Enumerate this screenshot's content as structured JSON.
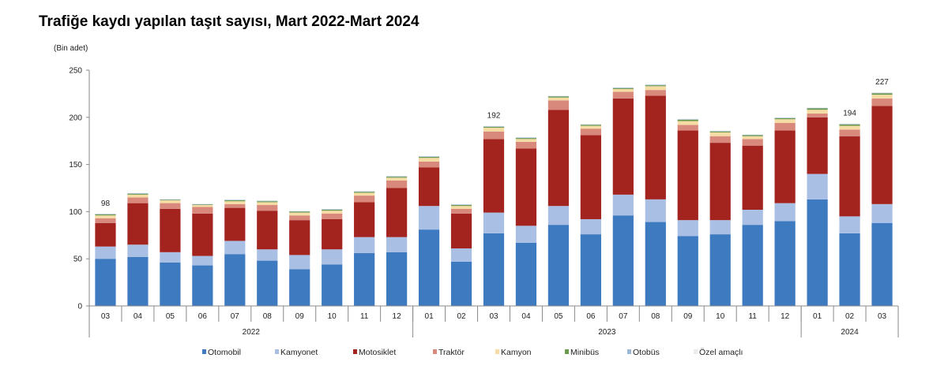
{
  "chart_data": {
    "type": "bar",
    "stacked": true,
    "title": "Trafiğe kaydı yapılan taşıt sayısı, Mart 2022-Mart 2024",
    "ylabel": "(Bin adet)",
    "xlabel": "",
    "ylim": [
      0,
      250
    ],
    "yticks": [
      0,
      50,
      100,
      150,
      200,
      250
    ],
    "grid": false,
    "legend_position": "bottom",
    "categories": [
      "03",
      "04",
      "05",
      "06",
      "07",
      "08",
      "09",
      "10",
      "11",
      "12",
      "01",
      "02",
      "03",
      "04",
      "05",
      "06",
      "07",
      "08",
      "09",
      "10",
      "11",
      "12",
      "01",
      "02",
      "03"
    ],
    "year_groups": [
      {
        "label": "2022",
        "start": 0,
        "end": 9
      },
      {
        "label": "2023",
        "start": 10,
        "end": 21
      },
      {
        "label": "2024",
        "start": 22,
        "end": 24
      }
    ],
    "series": [
      {
        "name": "Otomobil",
        "color": "#3d7ac0",
        "values": [
          50,
          52,
          46,
          43,
          55,
          48,
          39,
          44,
          56,
          57,
          81,
          47,
          77,
          67,
          86,
          76,
          96,
          89,
          74,
          76,
          86,
          90,
          113,
          77,
          88
        ]
      },
      {
        "name": "Kamyonet",
        "color": "#a9bfe4",
        "values": [
          13,
          13,
          11,
          10,
          14,
          12,
          15,
          16,
          17,
          16,
          25,
          14,
          22,
          18,
          20,
          16,
          22,
          24,
          17,
          15,
          16,
          19,
          27,
          18,
          20
        ]
      },
      {
        "name": "Motosiklet",
        "color": "#a3231f",
        "values": [
          25,
          44,
          46,
          45,
          35,
          41,
          37,
          32,
          37,
          52,
          41,
          37,
          78,
          82,
          102,
          89,
          102,
          110,
          95,
          82,
          68,
          77,
          60,
          85,
          104
        ]
      },
      {
        "name": "Traktör",
        "color": "#d9897c",
        "values": [
          5,
          6,
          6,
          7,
          4,
          6,
          5,
          6,
          7,
          8,
          6,
          5,
          8,
          7,
          10,
          7,
          7,
          6,
          6,
          7,
          7,
          8,
          4,
          7,
          8
        ]
      },
      {
        "name": "Kamyon",
        "color": "#f5dba4",
        "values": [
          3,
          3,
          3,
          2,
          3,
          3,
          3,
          3,
          3,
          3,
          4,
          3,
          4,
          3,
          3,
          3,
          3,
          4,
          4,
          4,
          3,
          4,
          4,
          4,
          4
        ]
      },
      {
        "name": "Minibüs",
        "color": "#6a9a4a",
        "values": [
          1,
          1,
          0.5,
          0.5,
          1,
          1,
          1,
          1,
          1,
          1,
          1,
          1,
          1,
          1,
          1,
          1,
          1,
          1,
          1.5,
          1,
          1,
          1,
          1.5,
          1.5,
          1.5
        ]
      },
      {
        "name": "Otobüs",
        "color": "#9bb6d6",
        "values": [
          0.5,
          0.5,
          0.5,
          0.5,
          0.5,
          0.5,
          0.5,
          0.5,
          0.5,
          0.5,
          0.5,
          0.5,
          0.5,
          0.5,
          0.5,
          0.5,
          0.5,
          0.5,
          0.5,
          0.5,
          0.5,
          0.5,
          0.5,
          0.5,
          0.5
        ]
      },
      {
        "name": "Özel amaçlı",
        "color": "#ebebeb",
        "values": [
          0.5,
          0.5,
          0.5,
          0.5,
          0.5,
          0.5,
          0.5,
          0.5,
          0.5,
          0.5,
          0.5,
          0.5,
          0.5,
          0.5,
          0.5,
          0.5,
          0.5,
          0.5,
          0.5,
          0.5,
          0.5,
          0.5,
          0.5,
          0.5,
          0.5
        ]
      }
    ],
    "data_labels": [
      {
        "index": 0,
        "text": "98"
      },
      {
        "index": 12,
        "text": "192"
      },
      {
        "index": 23,
        "text": "194"
      },
      {
        "index": 24,
        "text": "227"
      }
    ]
  }
}
